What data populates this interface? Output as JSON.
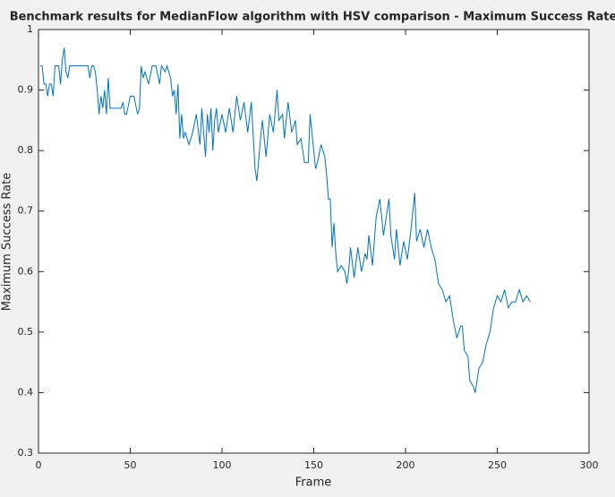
{
  "chart_data": {
    "type": "line",
    "title": "Benchmark results for MedianFlow algorithm with HSV comparison - Maximum Success Rate",
    "xlabel": "Frame",
    "ylabel": "Maximum Success Rate",
    "x": [
      1,
      2,
      3,
      4,
      5,
      6,
      7,
      8,
      9,
      10,
      11,
      12,
      13,
      14,
      15,
      16,
      17,
      20,
      25,
      27,
      28,
      29,
      30,
      31,
      32,
      33,
      34,
      35,
      36,
      37,
      38,
      39,
      40,
      42,
      45,
      46,
      47,
      48,
      50,
      52,
      54,
      55,
      56,
      57,
      58,
      60,
      62,
      64,
      66,
      67,
      69,
      70,
      72,
      73,
      74,
      75,
      76,
      77,
      78,
      79,
      80,
      82,
      84,
      86,
      88,
      89,
      90,
      91,
      92,
      93,
      94,
      95,
      96,
      97,
      98,
      100,
      102,
      104,
      106,
      108,
      110,
      112,
      114,
      116,
      118,
      119,
      121,
      122,
      124,
      126,
      128,
      130,
      131,
      133,
      134,
      136,
      138,
      140,
      141,
      143,
      145,
      147,
      148,
      149,
      150,
      151,
      152,
      154,
      156,
      157,
      158,
      159,
      160,
      161,
      162,
      163,
      165,
      167,
      168,
      169,
      170,
      172,
      174,
      176,
      178,
      179,
      180,
      182,
      184,
      186,
      188,
      190,
      191,
      192,
      194,
      195,
      197,
      199,
      201,
      203,
      205,
      206,
      208,
      210,
      212,
      214,
      216,
      218,
      220,
      222,
      224,
      226,
      228,
      230,
      231,
      232,
      234,
      235,
      237,
      238,
      240,
      242,
      244,
      246,
      248,
      250,
      252,
      254,
      256,
      258,
      260,
      262,
      264,
      266,
      268
    ],
    "series": [
      {
        "name": "Maximum Success Rate",
        "color": "#0072bd",
        "values": [
          0.94,
          0.94,
          0.91,
          0.91,
          0.89,
          0.91,
          0.91,
          0.89,
          0.94,
          0.94,
          0.94,
          0.91,
          0.95,
          0.97,
          0.93,
          0.92,
          0.94,
          0.94,
          0.94,
          0.94,
          0.92,
          0.94,
          0.94,
          0.93,
          0.9,
          0.86,
          0.89,
          0.87,
          0.9,
          0.86,
          0.92,
          0.87,
          0.87,
          0.87,
          0.87,
          0.88,
          0.86,
          0.86,
          0.89,
          0.89,
          0.86,
          0.87,
          0.94,
          0.92,
          0.93,
          0.91,
          0.94,
          0.94,
          0.91,
          0.94,
          0.93,
          0.94,
          0.92,
          0.89,
          0.9,
          0.86,
          0.91,
          0.82,
          0.86,
          0.82,
          0.83,
          0.81,
          0.83,
          0.86,
          0.81,
          0.87,
          0.83,
          0.79,
          0.86,
          0.83,
          0.87,
          0.8,
          0.85,
          0.87,
          0.83,
          0.86,
          0.83,
          0.87,
          0.83,
          0.89,
          0.85,
          0.88,
          0.83,
          0.88,
          0.77,
          0.75,
          0.82,
          0.85,
          0.79,
          0.86,
          0.83,
          0.9,
          0.85,
          0.86,
          0.82,
          0.88,
          0.83,
          0.85,
          0.81,
          0.82,
          0.78,
          0.78,
          0.86,
          0.83,
          0.8,
          0.77,
          0.78,
          0.81,
          0.79,
          0.76,
          0.72,
          0.72,
          0.64,
          0.68,
          0.63,
          0.6,
          0.61,
          0.6,
          0.58,
          0.6,
          0.64,
          0.59,
          0.64,
          0.6,
          0.63,
          0.62,
          0.66,
          0.61,
          0.69,
          0.72,
          0.66,
          0.7,
          0.72,
          0.66,
          0.62,
          0.67,
          0.61,
          0.65,
          0.62,
          0.67,
          0.73,
          0.65,
          0.67,
          0.64,
          0.67,
          0.64,
          0.62,
          0.58,
          0.57,
          0.55,
          0.56,
          0.52,
          0.49,
          0.51,
          0.51,
          0.47,
          0.46,
          0.42,
          0.41,
          0.4,
          0.44,
          0.45,
          0.48,
          0.5,
          0.54,
          0.56,
          0.55,
          0.57,
          0.54,
          0.55,
          0.55,
          0.57,
          0.55,
          0.56,
          0.55
        ]
      }
    ],
    "xlim": [
      0,
      300
    ],
    "xticks": [
      0,
      50,
      100,
      150,
      200,
      250,
      300
    ],
    "ylim": [
      0.3,
      1
    ],
    "yticks": [
      0.3,
      0.4,
      0.5,
      0.6,
      0.7,
      0.8,
      0.9,
      1
    ],
    "grid": false
  }
}
